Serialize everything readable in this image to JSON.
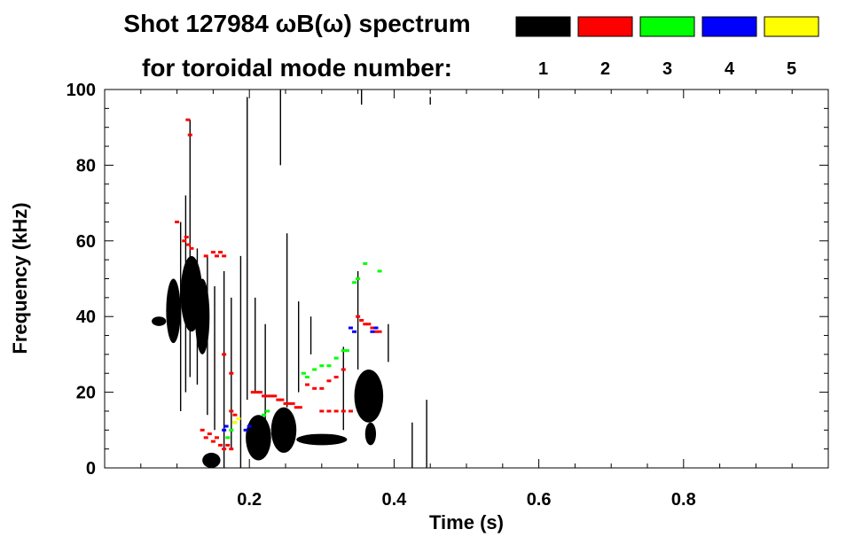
{
  "chart_data": {
    "type": "scatter",
    "title_line1": "Shot 127984 ωB(ω) spectrum",
    "title_line2": "for toroidal mode number:",
    "xlabel": "Time (s)",
    "ylabel": "Frequency (kHz)",
    "xlim": [
      0.0,
      1.0
    ],
    "ylim": [
      0,
      100
    ],
    "x_ticks": [
      "0.2",
      "0.4",
      "0.6",
      "0.8"
    ],
    "x_tick_values": [
      0.2,
      0.4,
      0.6,
      0.8
    ],
    "y_ticks": [
      "0",
      "20",
      "40",
      "60",
      "80",
      "100"
    ],
    "y_tick_values": [
      0,
      20,
      40,
      60,
      80,
      100
    ],
    "legend": [
      {
        "label": "1",
        "color": "#000000"
      },
      {
        "label": "2",
        "color": "#ff0000"
      },
      {
        "label": "3",
        "color": "#00ff00"
      },
      {
        "label": "4",
        "color": "#0000ff"
      },
      {
        "label": "5",
        "color": "#ffff00"
      }
    ],
    "series": [
      {
        "name": "1",
        "color": "#000000",
        "blobs": [
          {
            "t0": 0.065,
            "t1": 0.085,
            "f0": 37.5,
            "f1": 40.0
          },
          {
            "t0": 0.085,
            "t1": 0.105,
            "f0": 33.0,
            "f1": 50.0
          },
          {
            "t0": 0.105,
            "t1": 0.135,
            "f0": 36.0,
            "f1": 56.0
          },
          {
            "t0": 0.125,
            "t1": 0.145,
            "f0": 30.0,
            "f1": 50.0
          },
          {
            "t0": 0.135,
            "t1": 0.16,
            "f0": 0.0,
            "f1": 4.0
          },
          {
            "t0": 0.195,
            "t1": 0.23,
            "f0": 2.0,
            "f1": 14.0
          },
          {
            "t0": 0.23,
            "t1": 0.265,
            "f0": 4.0,
            "f1": 16.0
          },
          {
            "t0": 0.265,
            "t1": 0.335,
            "f0": 6.0,
            "f1": 9.0
          },
          {
            "t0": 0.345,
            "t1": 0.385,
            "f0": 12.0,
            "f1": 26.0
          },
          {
            "t0": 0.36,
            "t1": 0.375,
            "f0": 6.0,
            "f1": 12.0
          }
        ],
        "streaks": [
          {
            "t": 0.105,
            "f0": 15.0,
            "f1": 65.0
          },
          {
            "t": 0.112,
            "f0": 20.0,
            "f1": 72.0
          },
          {
            "t": 0.118,
            "f0": 24.0,
            "f1": 92.0
          },
          {
            "t": 0.128,
            "f0": 22.0,
            "f1": 58.0
          },
          {
            "t": 0.142,
            "f0": 14.0,
            "f1": 56.0
          },
          {
            "t": 0.152,
            "f0": 10.0,
            "f1": 48.0
          },
          {
            "t": 0.165,
            "f0": 0.0,
            "f1": 52.0
          },
          {
            "t": 0.175,
            "f0": 5.0,
            "f1": 45.0
          },
          {
            "t": 0.188,
            "f0": 0.0,
            "f1": 56.0
          },
          {
            "t": 0.197,
            "f0": 18.0,
            "f1": 98.0
          },
          {
            "t": 0.208,
            "f0": 20.0,
            "f1": 45.0
          },
          {
            "t": 0.222,
            "f0": 5.0,
            "f1": 38.0
          },
          {
            "t": 0.243,
            "f0": 80.0,
            "f1": 100.0
          },
          {
            "t": 0.252,
            "f0": 16.0,
            "f1": 62.0
          },
          {
            "t": 0.268,
            "f0": 20.0,
            "f1": 44.0
          },
          {
            "t": 0.285,
            "f0": 30.0,
            "f1": 40.0
          },
          {
            "t": 0.33,
            "f0": 10.0,
            "f1": 32.0
          },
          {
            "t": 0.35,
            "f0": 26.0,
            "f1": 52.0
          },
          {
            "t": 0.355,
            "f0": 96.0,
            "f1": 100.0
          },
          {
            "t": 0.392,
            "f0": 28.0,
            "f1": 38.0
          },
          {
            "t": 0.425,
            "f0": 0.0,
            "f1": 12.0
          },
          {
            "t": 0.445,
            "f0": 0.0,
            "f1": 18.0
          },
          {
            "t": 0.45,
            "f0": 96.0,
            "f1": 98.0
          }
        ]
      },
      {
        "name": "2",
        "color": "#ff0000",
        "points": [
          [
            0.11,
            60
          ],
          [
            0.113,
            61
          ],
          [
            0.116,
            59
          ],
          [
            0.12,
            58
          ],
          [
            0.1,
            65
          ],
          [
            0.118,
            88
          ],
          [
            0.115,
            92
          ],
          [
            0.15,
            57
          ],
          [
            0.155,
            56
          ],
          [
            0.16,
            57
          ],
          [
            0.165,
            56
          ],
          [
            0.14,
            56
          ],
          [
            0.165,
            30
          ],
          [
            0.175,
            25
          ],
          [
            0.135,
            10
          ],
          [
            0.14,
            8
          ],
          [
            0.145,
            9
          ],
          [
            0.15,
            7
          ],
          [
            0.155,
            8
          ],
          [
            0.16,
            6
          ],
          [
            0.165,
            5
          ],
          [
            0.17,
            6
          ],
          [
            0.175,
            5
          ],
          [
            0.205,
            20
          ],
          [
            0.21,
            20
          ],
          [
            0.215,
            20
          ],
          [
            0.22,
            19
          ],
          [
            0.225,
            19
          ],
          [
            0.23,
            19
          ],
          [
            0.235,
            19
          ],
          [
            0.24,
            18
          ],
          [
            0.245,
            18
          ],
          [
            0.25,
            17
          ],
          [
            0.255,
            17
          ],
          [
            0.26,
            17
          ],
          [
            0.265,
            16
          ],
          [
            0.27,
            16
          ],
          [
            0.28,
            22
          ],
          [
            0.29,
            21
          ],
          [
            0.3,
            21
          ],
          [
            0.31,
            23
          ],
          [
            0.32,
            24
          ],
          [
            0.33,
            26
          ],
          [
            0.3,
            15
          ],
          [
            0.31,
            15
          ],
          [
            0.32,
            15
          ],
          [
            0.33,
            15
          ],
          [
            0.34,
            15
          ],
          [
            0.35,
            40
          ],
          [
            0.355,
            39
          ],
          [
            0.36,
            38
          ],
          [
            0.365,
            38
          ],
          [
            0.37,
            37
          ],
          [
            0.375,
            36
          ],
          [
            0.38,
            36
          ],
          [
            0.175,
            15
          ],
          [
            0.18,
            14
          ]
        ]
      },
      {
        "name": "3",
        "color": "#00ff00",
        "points": [
          [
            0.175,
            10
          ],
          [
            0.18,
            12
          ],
          [
            0.17,
            8
          ],
          [
            0.275,
            25
          ],
          [
            0.28,
            24
          ],
          [
            0.29,
            26
          ],
          [
            0.3,
            27
          ],
          [
            0.31,
            27
          ],
          [
            0.32,
            29
          ],
          [
            0.33,
            31
          ],
          [
            0.335,
            31
          ],
          [
            0.345,
            49
          ],
          [
            0.35,
            50
          ],
          [
            0.36,
            54
          ],
          [
            0.38,
            52
          ],
          [
            0.22,
            14
          ],
          [
            0.225,
            15
          ]
        ]
      },
      {
        "name": "4",
        "color": "#0000ff",
        "points": [
          [
            0.165,
            10
          ],
          [
            0.168,
            11
          ],
          [
            0.195,
            10
          ],
          [
            0.2,
            11
          ],
          [
            0.34,
            37
          ],
          [
            0.345,
            36
          ],
          [
            0.37,
            36
          ],
          [
            0.375,
            37
          ]
        ]
      },
      {
        "name": "5",
        "color": "#ffff00",
        "points": [
          [
            0.18,
            12
          ],
          [
            0.185,
            13
          ]
        ]
      }
    ]
  }
}
